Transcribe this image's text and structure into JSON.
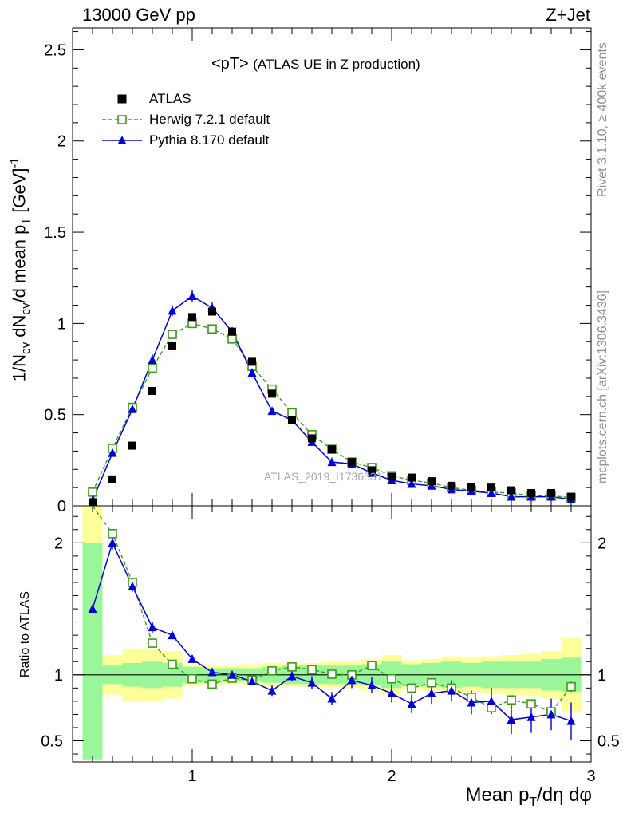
{
  "header": {
    "left": "13000 GeV pp",
    "right": "Z+Jet"
  },
  "plot_title": {
    "main": "<pT>",
    "sub": "(ATLAS UE in Z production)"
  },
  "legend": [
    "ATLAS",
    "Herwig 7.2.1 default",
    "Pythia 8.170 default"
  ],
  "side_text": {
    "rivet": "Rivet 3.1.10, ≥ 400k events",
    "mcplots": "mcplots.cern.ch [arXiv:1306.3436]"
  },
  "watermark": "ATLAS_2019_I1736531",
  "colors": {
    "atlas": "#000000",
    "herwig": "#3a9a1a",
    "pythia": "#0000dd",
    "band_inner": "#99f799",
    "band_outer": "#ffff99"
  },
  "chart_data": [
    {
      "type": "line",
      "title": "<pT> (ATLAS UE in Z production)",
      "xlabel": "Mean pT/dη dφ",
      "ylabel": "1/Nev dNev/d mean pT [GeV]^-1",
      "xlim": [
        0.4,
        3.0
      ],
      "ylim": [
        0,
        2.62
      ],
      "yticks": [
        0,
        0.5,
        1,
        1.5,
        2,
        2.5
      ],
      "xticks": [
        1,
        2,
        3
      ],
      "legend_position": "top-left",
      "x": [
        0.5,
        0.6,
        0.7,
        0.8,
        0.9,
        1.0,
        1.1,
        1.2,
        1.3,
        1.4,
        1.5,
        1.6,
        1.7,
        1.8,
        1.9,
        2.0,
        2.1,
        2.2,
        2.3,
        2.4,
        2.5,
        2.6,
        2.7,
        2.8,
        2.9
      ],
      "series": [
        {
          "name": "ATLAS",
          "values": [
            0.02,
            0.145,
            0.33,
            0.63,
            0.875,
            1.035,
            1.065,
            0.955,
            0.79,
            0.615,
            0.47,
            0.37,
            0.31,
            0.24,
            0.195,
            0.16,
            0.155,
            0.135,
            0.11,
            0.105,
            0.1,
            0.085,
            0.07,
            0.07,
            0.05
          ]
        },
        {
          "name": "Herwig 7.2.1 default",
          "values": [
            0.075,
            0.315,
            0.54,
            0.755,
            0.94,
            1.0,
            0.97,
            0.915,
            0.765,
            0.64,
            0.51,
            0.39,
            0.31,
            0.24,
            0.21,
            0.165,
            0.14,
            0.125,
            0.1,
            0.085,
            0.075,
            0.07,
            0.055,
            0.055,
            0.045
          ]
        },
        {
          "name": "Pythia 8.170 default",
          "values": [
            0.03,
            0.29,
            0.53,
            0.8,
            1.07,
            1.15,
            1.085,
            0.955,
            0.73,
            0.52,
            0.47,
            0.35,
            0.24,
            0.23,
            0.18,
            0.14,
            0.12,
            0.11,
            0.09,
            0.08,
            0.07,
            0.05,
            0.05,
            0.05,
            0.035
          ],
          "errors": [
            0.01,
            0.02,
            0.02,
            0.03,
            0.03,
            0.035,
            0.03,
            0.025,
            0.02,
            0.015,
            0.015,
            0.01,
            0.01,
            0.01,
            0.008,
            0.008,
            0.007,
            0.006,
            0.006,
            0.006,
            0.005,
            0.005,
            0.005,
            0.005,
            0.004
          ]
        }
      ]
    },
    {
      "type": "line",
      "ylabel": "Ratio to ATLAS",
      "xlim": [
        0.4,
        3.0
      ],
      "ylim": [
        0.34,
        2.28
      ],
      "yticks": [
        0.5,
        1,
        2
      ],
      "x": [
        0.5,
        0.6,
        0.7,
        0.8,
        0.9,
        1.0,
        1.1,
        1.2,
        1.3,
        1.4,
        1.5,
        1.6,
        1.7,
        1.8,
        1.9,
        2.0,
        2.1,
        2.2,
        2.3,
        2.4,
        2.5,
        2.6,
        2.7,
        2.8,
        2.9
      ],
      "bands": {
        "inner": [
          [
            0.36,
            2.0
          ],
          [
            0.93,
            1.07
          ],
          [
            0.91,
            1.09
          ],
          [
            0.9,
            1.1
          ],
          [
            0.91,
            1.09
          ],
          [
            0.94,
            1.06
          ],
          [
            0.95,
            1.05
          ],
          [
            0.95,
            1.05
          ],
          [
            0.95,
            1.05
          ],
          [
            0.94,
            1.06
          ],
          [
            0.93,
            1.07
          ],
          [
            0.93,
            1.07
          ],
          [
            0.93,
            1.07
          ],
          [
            0.93,
            1.07
          ],
          [
            0.92,
            1.08
          ],
          [
            0.9,
            1.1
          ],
          [
            0.92,
            1.08
          ],
          [
            0.91,
            1.09
          ],
          [
            0.9,
            1.1
          ],
          [
            0.91,
            1.09
          ],
          [
            0.9,
            1.1
          ],
          [
            0.9,
            1.1
          ],
          [
            0.9,
            1.1
          ],
          [
            0.88,
            1.12
          ],
          [
            0.87,
            1.13
          ]
        ],
        "outer": [
          [
            0.36,
            2.4
          ],
          [
            0.85,
            1.15
          ],
          [
            0.8,
            1.2
          ],
          [
            0.8,
            1.2
          ],
          [
            0.82,
            1.18
          ],
          [
            0.92,
            1.08
          ],
          [
            0.93,
            1.07
          ],
          [
            0.93,
            1.07
          ],
          [
            0.92,
            1.08
          ],
          [
            0.91,
            1.09
          ],
          [
            0.91,
            1.09
          ],
          [
            0.91,
            1.09
          ],
          [
            0.9,
            1.1
          ],
          [
            0.9,
            1.1
          ],
          [
            0.88,
            1.12
          ],
          [
            0.85,
            1.15
          ],
          [
            0.89,
            1.11
          ],
          [
            0.88,
            1.12
          ],
          [
            0.86,
            1.14
          ],
          [
            0.87,
            1.13
          ],
          [
            0.86,
            1.14
          ],
          [
            0.85,
            1.15
          ],
          [
            0.84,
            1.16
          ],
          [
            0.82,
            1.18
          ],
          [
            0.72,
            1.28
          ]
        ]
      },
      "series": [
        {
          "name": "Herwig 7.2.1 default",
          "values": [
            3.4,
            2.07,
            1.7,
            1.24,
            1.08,
            0.97,
            0.93,
            0.975,
            0.96,
            1.03,
            1.06,
            1.04,
            1.005,
            1.0,
            1.07,
            0.97,
            0.9,
            0.94,
            0.9,
            0.83,
            0.75,
            0.81,
            0.78,
            0.72,
            0.91
          ],
          "errors": [
            0,
            0.02,
            0.02,
            0.02,
            0.02,
            0.02,
            0.02,
            0.02,
            0.02,
            0.02,
            0.02,
            0.02,
            0.02,
            0.02,
            0.02,
            0.02,
            0.02,
            0.02,
            0.02,
            0.02,
            0.03,
            0.03,
            0.03,
            0.03,
            0.04
          ]
        },
        {
          "name": "Pythia 8.170 default",
          "values": [
            1.5,
            2.0,
            1.67,
            1.36,
            1.3,
            1.12,
            1.02,
            1.0,
            0.95,
            0.88,
            0.99,
            0.94,
            0.82,
            0.96,
            0.92,
            0.86,
            0.78,
            0.86,
            0.88,
            0.79,
            0.8,
            0.66,
            0.68,
            0.7,
            0.65
          ],
          "errors": [
            0,
            0.05,
            0.04,
            0.04,
            0.03,
            0.03,
            0.03,
            0.03,
            0.03,
            0.04,
            0.04,
            0.05,
            0.05,
            0.06,
            0.06,
            0.07,
            0.07,
            0.08,
            0.08,
            0.09,
            0.1,
            0.11,
            0.12,
            0.12,
            0.14
          ]
        }
      ]
    }
  ]
}
